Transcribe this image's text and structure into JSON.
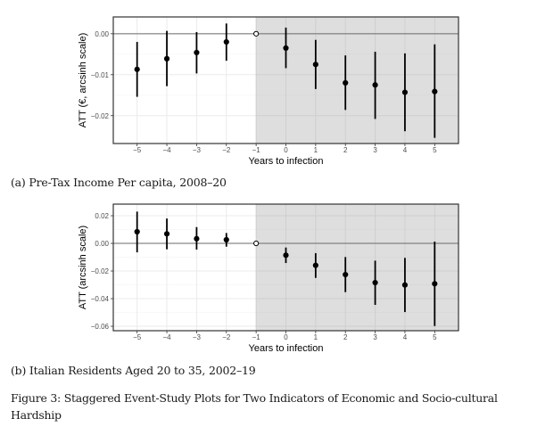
{
  "figure": {
    "caption": "Figure 3: Staggered Event-Study Plots for Two Indicators of Economic and Socio-cultural Hardship"
  },
  "chart_data": [
    {
      "type": "scatter",
      "subtype": "event-study point estimates with confidence intervals",
      "panel_label": "(a) Pre-Tax Income Per capita, 2008–20",
      "xlabel": "Years to infection",
      "ylabel": "ATT (€, arcsinh scale)",
      "x": [
        -5,
        -4,
        -3,
        -2,
        -1,
        0,
        1,
        2,
        3,
        4,
        5
      ],
      "x_ticks": [
        "−5",
        "−4",
        "−3",
        "−2",
        "−1",
        "0",
        "1",
        "2",
        "3",
        "4",
        "5"
      ],
      "y_ticks": [
        0.0,
        -0.01,
        -0.02
      ],
      "y_tick_labels": [
        "0.00",
        "−0.01",
        "−0.02"
      ],
      "xlim": [
        -5.8,
        5.8
      ],
      "ylim": [
        -0.0268,
        0.0041
      ],
      "reference_line_y": 0,
      "reference_period": -1,
      "shaded_from_x": -1,
      "grid": true,
      "series": [
        {
          "name": "ATT",
          "estimate": [
            -0.0087,
            -0.0061,
            -0.0046,
            -0.002,
            0.0,
            -0.0035,
            -0.0075,
            -0.012,
            -0.0125,
            -0.0143,
            -0.0141
          ],
          "ci_upper": [
            -0.002,
            0.0007,
            0.0004,
            0.0025,
            null,
            0.0015,
            -0.0015,
            -0.0053,
            -0.0044,
            -0.0048,
            -0.0026
          ],
          "ci_lower": [
            -0.0154,
            -0.0128,
            -0.0097,
            -0.0066,
            null,
            -0.0084,
            -0.0135,
            -0.0186,
            -0.0208,
            -0.0238,
            -0.0254
          ]
        }
      ]
    },
    {
      "type": "scatter",
      "subtype": "event-study point estimates with confidence intervals",
      "panel_label": "(b) Italian Residents Aged 20 to 35, 2002–19",
      "xlabel": "Years to infection",
      "ylabel": "ATT (arcsinh scale)",
      "x": [
        -5,
        -4,
        -3,
        -2,
        -1,
        0,
        1,
        2,
        3,
        4,
        5
      ],
      "x_ticks": [
        "−5",
        "−4",
        "−3",
        "−2",
        "−1",
        "0",
        "1",
        "2",
        "3",
        "4",
        "5"
      ],
      "y_ticks": [
        0.02,
        0.0,
        -0.02,
        -0.04,
        -0.06
      ],
      "y_tick_labels": [
        "0.02",
        "0.00",
        "−0.02",
        "−0.04",
        "−0.06"
      ],
      "xlim": [
        -5.8,
        5.8
      ],
      "ylim": [
        -0.0632,
        0.0284
      ],
      "reference_line_y": 0,
      "reference_period": -1,
      "shaded_from_x": -1,
      "grid": true,
      "series": [
        {
          "name": "ATT",
          "estimate": [
            0.0084,
            0.0069,
            0.0034,
            0.0026,
            0.0,
            -0.0086,
            -0.0159,
            -0.0226,
            -0.0284,
            -0.0301,
            -0.0292
          ],
          "ci_upper": [
            0.023,
            0.018,
            0.0118,
            0.0075,
            null,
            -0.003,
            -0.0071,
            -0.0099,
            -0.0125,
            -0.0105,
            0.0013
          ],
          "ci_lower": [
            -0.0065,
            -0.0043,
            -0.0045,
            -0.0024,
            null,
            -0.0142,
            -0.025,
            -0.0353,
            -0.0445,
            -0.0497,
            -0.0598
          ]
        }
      ]
    }
  ],
  "colors": {
    "shade": "#dedede",
    "grid_light": "#ebebeb",
    "grid_shaded": "#cfcfcf",
    "ref_line": "#6b6b6b",
    "marker": "#000000",
    "frame": "#333333"
  }
}
